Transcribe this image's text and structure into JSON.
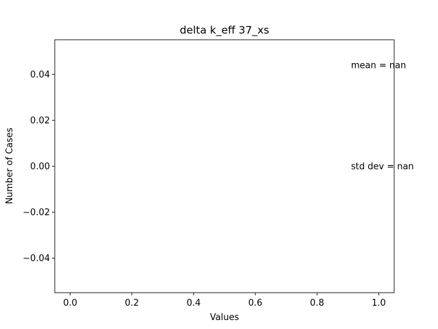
{
  "chart_data": {
    "type": "bar",
    "title": "delta k_eff 37_xs",
    "xlabel": "Values",
    "ylabel": "Number of Cases",
    "xlim": [
      -0.05,
      1.05
    ],
    "ylim": [
      -0.055,
      0.055
    ],
    "x_ticks": [
      0.0,
      0.2,
      0.4,
      0.6,
      0.8,
      1.0
    ],
    "x_tick_labels": [
      "0.0",
      "0.2",
      "0.4",
      "0.6",
      "0.8",
      "1.0"
    ],
    "y_ticks": [
      -0.04,
      -0.02,
      0.0,
      0.02,
      0.04
    ],
    "y_tick_labels": [
      "−0.04",
      "−0.02",
      "0.00",
      "0.02",
      "0.04"
    ],
    "grid": false,
    "series": [],
    "annotations": [
      {
        "text": "mean = nan",
        "x": 0.91,
        "y": 0.044
      },
      {
        "text": "std dev = nan",
        "x": 0.91,
        "y": 0.0
      }
    ]
  }
}
